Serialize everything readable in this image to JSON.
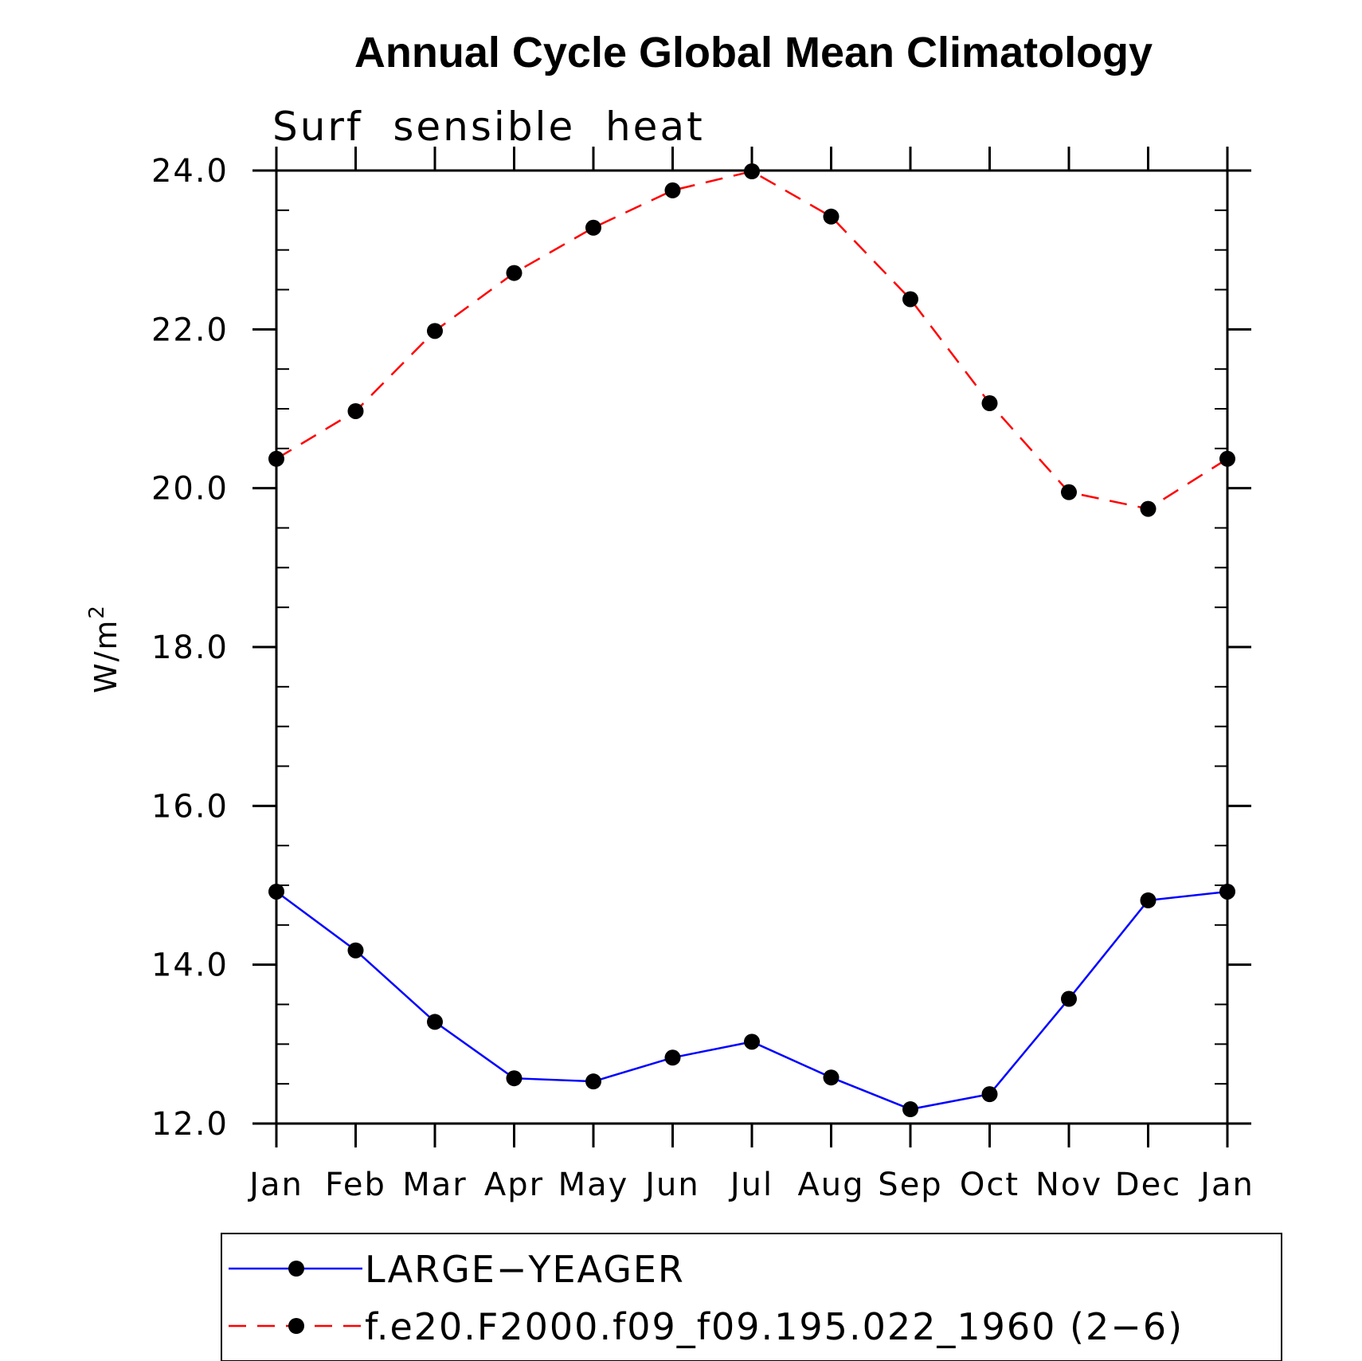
{
  "chart_data": {
    "type": "line",
    "title": "Annual Cycle Global Mean Climatology",
    "subtitle": "Surf  sensible  heat",
    "ylabel_base": "W/m",
    "ylabel_sup": "2",
    "xlabel": "",
    "categories": [
      "Jan",
      "Feb",
      "Mar",
      "Apr",
      "May",
      "Jun",
      "Jul",
      "Aug",
      "Sep",
      "Oct",
      "Nov",
      "Dec",
      "Jan"
    ],
    "ylim": [
      12.0,
      24.0
    ],
    "yticks": [
      "12.0",
      "14.0",
      "16.0",
      "18.0",
      "20.0",
      "22.0",
      "24.0"
    ],
    "y_minor_step": 0.5,
    "grid": false,
    "legend_position": "bottom",
    "series": [
      {
        "name": "LARGE−YEAGER",
        "color": "#0000ff",
        "dash": "solid",
        "marker": "filled-circle",
        "values": [
          14.92,
          14.18,
          13.28,
          12.57,
          12.53,
          12.83,
          13.03,
          12.58,
          12.18,
          12.37,
          13.57,
          14.81,
          14.92
        ]
      },
      {
        "name": "f.e20.F2000.f09_f09.195.022_1960 (2−6)",
        "color": "#ff0000",
        "dash": "dashed",
        "marker": "filled-circle",
        "values": [
          20.37,
          20.97,
          21.98,
          22.71,
          23.28,
          23.75,
          23.99,
          23.42,
          22.38,
          21.07,
          19.95,
          19.74,
          20.37
        ]
      }
    ]
  }
}
